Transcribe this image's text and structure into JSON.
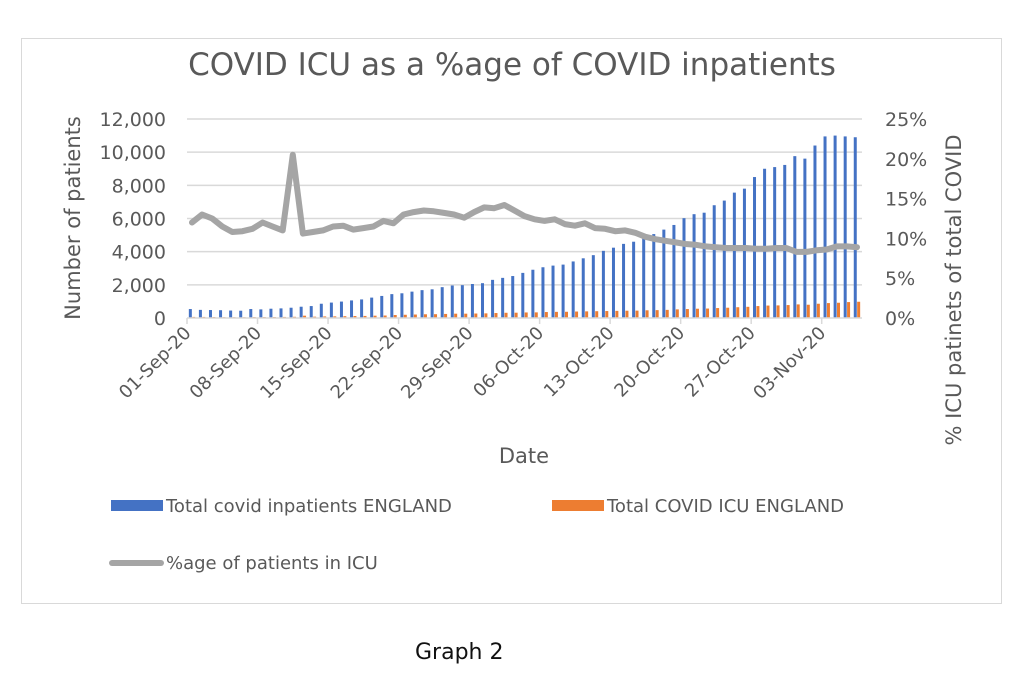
{
  "caption": "Graph 2",
  "chart_data": {
    "type": "bar+line",
    "title": "COVID ICU as a %age of COVID inpatients",
    "xlabel": "Date",
    "ylabel": "Number of patients",
    "y2label": "% ICU patinets of total COVID",
    "ylim": [
      0,
      12000
    ],
    "y2lim": [
      0,
      0.25
    ],
    "yticks": [
      "0",
      "2,000",
      "4,000",
      "6,000",
      "8,000",
      "10,000",
      "12,000"
    ],
    "yticks_values": [
      0,
      2000,
      4000,
      6000,
      8000,
      10000,
      12000
    ],
    "y2ticks": [
      "0%",
      "5%",
      "10%",
      "15%",
      "20%",
      "25%"
    ],
    "y2ticks_values": [
      0,
      0.05,
      0.1,
      0.15,
      0.2,
      0.25
    ],
    "grid": true,
    "legend_position": "bottom",
    "xtick_labels": [
      "01-Sep-20",
      "08-Sep-20",
      "15-Sep-20",
      "22-Sep-20",
      "29-Sep-20",
      "06-Oct-20",
      "13-Oct-20",
      "20-Oct-20",
      "27-Oct-20",
      "03-Nov-20"
    ],
    "x_start": "01-Sep-20",
    "x_days": 67,
    "colors": {
      "inpatients": "#4472c4",
      "icu": "#ed7d31",
      "pct": "#a5a5a5",
      "grid": "#d9d9d9",
      "text": "#595959"
    },
    "series": [
      {
        "name": "Total covid inpatients ENGLAND",
        "type": "bar",
        "axis": "left",
        "values": [
          540,
          490,
          480,
          470,
          450,
          440,
          540,
          520,
          560,
          580,
          620,
          680,
          720,
          860,
          930,
          990,
          1060,
          1120,
          1230,
          1330,
          1440,
          1490,
          1590,
          1680,
          1730,
          1860,
          1960,
          1980,
          2050,
          2100,
          2300,
          2420,
          2530,
          2720,
          2910,
          3060,
          3160,
          3220,
          3410,
          3600,
          3790,
          4050,
          4240,
          4470,
          4600,
          4870,
          5060,
          5330,
          5610,
          6020,
          6260,
          6350,
          6800,
          7080,
          7560,
          7800,
          8500,
          9000,
          9100,
          9230,
          9760,
          9610,
          10400,
          10950,
          11000,
          10950,
          10900
        ],
        "sample_values_note": "one bar per day from 01-Sep-20"
      },
      {
        "name": "Total COVID ICU ENGLAND",
        "type": "bar",
        "axis": "left",
        "values": [
          65,
          64,
          60,
          52,
          49,
          48,
          58,
          58,
          60,
          64,
          72,
          140,
          80,
          95,
          100,
          110,
          120,
          125,
          140,
          150,
          180,
          195,
          210,
          225,
          230,
          245,
          260,
          260,
          270,
          280,
          300,
          315,
          320,
          335,
          340,
          360,
          370,
          375,
          390,
          400,
          410,
          420,
          430,
          440,
          445,
          465,
          475,
          490,
          520,
          540,
          560,
          570,
          600,
          620,
          650,
          675,
          720,
          750,
          760,
          780,
          820,
          800,
          860,
          900,
          920,
          960,
          980
        ]
      },
      {
        "name": "%age of patients in ICU",
        "type": "line",
        "axis": "right",
        "values": [
          0.12,
          0.13,
          0.125,
          0.115,
          0.108,
          0.109,
          0.112,
          0.12,
          0.115,
          0.11,
          0.205,
          0.106,
          0.108,
          0.11,
          0.115,
          0.116,
          0.111,
          0.113,
          0.115,
          0.122,
          0.119,
          0.13,
          0.133,
          0.135,
          0.134,
          0.132,
          0.13,
          0.126,
          0.133,
          0.139,
          0.138,
          0.142,
          0.135,
          0.128,
          0.124,
          0.122,
          0.124,
          0.118,
          0.116,
          0.119,
          0.113,
          0.112,
          0.109,
          0.11,
          0.107,
          0.102,
          0.099,
          0.097,
          0.095,
          0.093,
          0.092,
          0.09,
          0.089,
          0.088,
          0.088,
          0.088,
          0.087,
          0.087,
          0.088,
          0.088,
          0.083,
          0.083,
          0.085,
          0.086,
          0.09,
          0.09,
          0.089
        ]
      }
    ]
  }
}
